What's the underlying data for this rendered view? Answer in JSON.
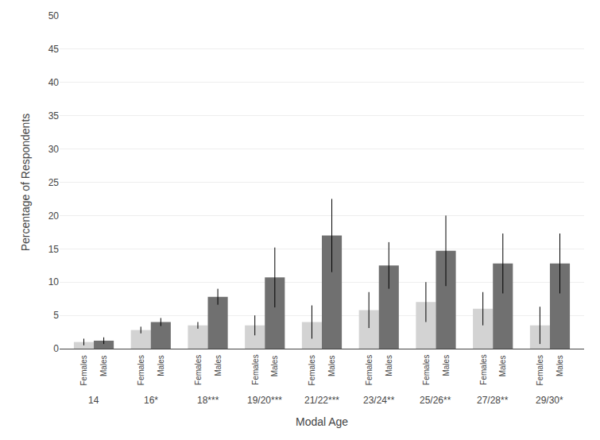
{
  "chart_data": {
    "type": "bar",
    "xlabel": "Modal Age",
    "ylabel": "Percentage of Respondents",
    "categories": [
      "14",
      "16*",
      "18***",
      "19/20***",
      "21/22***",
      "23/24**",
      "25/26**",
      "27/28**",
      "29/30*"
    ],
    "series": [
      {
        "name": "Females",
        "color": "#d3d3d3",
        "values": [
          1.0,
          2.8,
          3.5,
          3.5,
          4.0,
          5.8,
          7.0,
          6.0,
          3.5
        ],
        "errors": [
          0.5,
          0.5,
          0.5,
          1.5,
          2.5,
          2.7,
          3.0,
          2.5,
          2.8
        ]
      },
      {
        "name": "Males",
        "color": "#707070",
        "values": [
          1.2,
          4.0,
          7.8,
          10.7,
          17.0,
          12.5,
          14.7,
          12.8,
          12.8
        ],
        "errors": [
          0.5,
          0.6,
          1.2,
          4.5,
          5.5,
          3.5,
          5.3,
          4.5,
          4.5
        ]
      }
    ],
    "ylim": [
      0,
      50
    ],
    "yticks": [
      0,
      5,
      10,
      15,
      20,
      25,
      30,
      35,
      40,
      45,
      50
    ],
    "grid": true
  }
}
